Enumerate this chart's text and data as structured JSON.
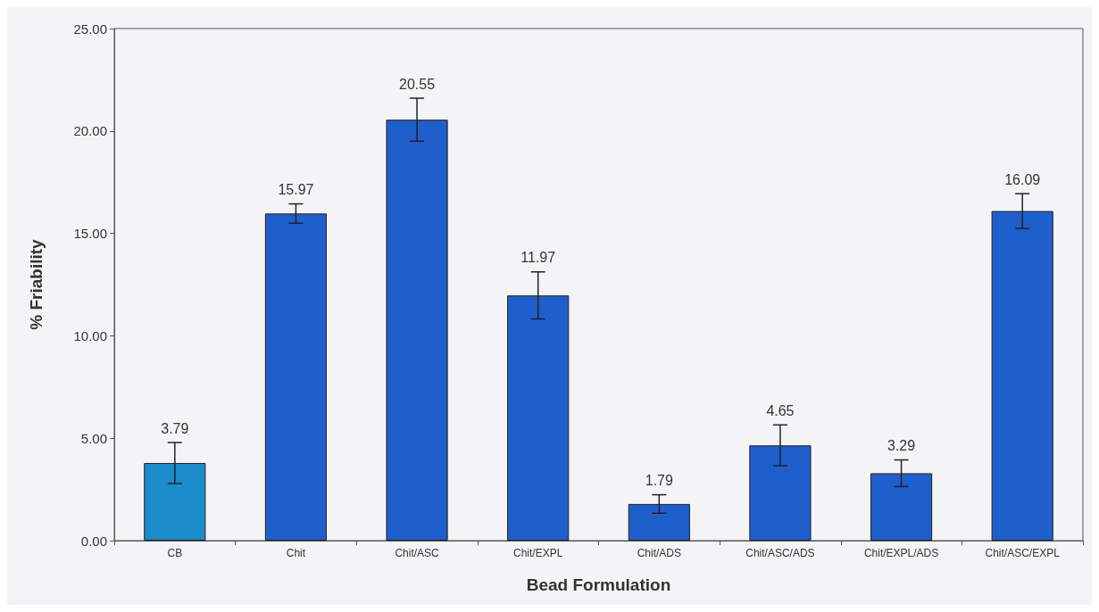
{
  "chart_data": {
    "type": "bar",
    "xlabel": "Bead Formulation",
    "ylabel": "% Friability",
    "categories": [
      "CB",
      "Chit",
      "Chit/ASC",
      "Chit/EXPL",
      "Chit/ADS",
      "Chit/ASC/ADS",
      "Chit/EXPL/ADS",
      "Chit/ASC/EXPL"
    ],
    "values": [
      3.79,
      15.97,
      20.55,
      11.97,
      1.79,
      4.65,
      3.29,
      16.09
    ],
    "errors": [
      1.0,
      0.47,
      1.05,
      1.15,
      0.45,
      1.0,
      0.65,
      0.85
    ],
    "colors": [
      "#1a8ccc",
      "#1e5fcc",
      "#1e5fcc",
      "#1e5fcc",
      "#1e5fcc",
      "#1e5fcc",
      "#1e5fcc",
      "#1e5fcc"
    ],
    "ylim": [
      0,
      25
    ],
    "yticks": [
      {
        "value": 0,
        "label": "0.00"
      },
      {
        "value": 5,
        "label": "5.00"
      },
      {
        "value": 10,
        "label": "10.00"
      },
      {
        "value": 15,
        "label": "15.00"
      },
      {
        "value": 20,
        "label": "20.00"
      },
      {
        "value": 25,
        "label": "25.00"
      }
    ],
    "data_labels": true,
    "grid": false
  }
}
